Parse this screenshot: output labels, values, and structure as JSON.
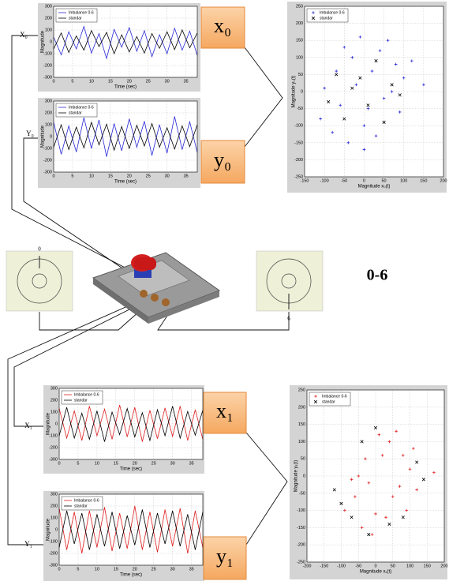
{
  "chart_data": [
    {
      "type": "line",
      "xlabel": "Time (sec)",
      "ylabel": "Magnitude",
      "grid": true,
      "xlim": [
        0,
        38
      ],
      "ylim": [
        -300,
        300
      ],
      "xticks": [
        0,
        5,
        10,
        15,
        20,
        25,
        30,
        35
      ],
      "yticks": [
        -300,
        -200,
        -100,
        0,
        100,
        200,
        300
      ],
      "x": [
        0,
        2,
        4,
        6,
        8,
        10,
        12,
        14,
        16,
        18,
        20,
        22,
        24,
        26,
        28,
        30,
        32,
        34,
        36,
        38
      ],
      "series": [
        {
          "name": "Imbalance 0-6",
          "color": "#2a2ad8",
          "values": [
            40,
            -110,
            85,
            -60,
            130,
            -95,
            70,
            -140,
            105,
            -45,
            120,
            -80,
            95,
            -125,
            60,
            -100,
            115,
            -70,
            90,
            -115
          ]
        },
        {
          "name": "standar",
          "color": "#000000",
          "values": [
            -60,
            75,
            -90,
            50,
            -70,
            95,
            -40,
            80,
            -100,
            60,
            -85,
            45,
            -95,
            70,
            -55,
            85,
            -65,
            100,
            -50,
            75
          ]
        }
      ]
    },
    {
      "type": "line",
      "xlabel": "Time (sec)",
      "ylabel": "Magnitude",
      "grid": true,
      "xlim": [
        0,
        38
      ],
      "ylim": [
        -300,
        300
      ],
      "xticks": [
        0,
        5,
        10,
        15,
        20,
        25,
        30,
        35
      ],
      "yticks": [
        -300,
        -200,
        -100,
        0,
        100,
        200,
        300
      ],
      "x": [
        0,
        2,
        4,
        6,
        8,
        10,
        12,
        14,
        16,
        18,
        20,
        22,
        24,
        26,
        28,
        30,
        32,
        34,
        36,
        38
      ],
      "series": [
        {
          "name": "Imbalance 0-6",
          "color": "#2a2ad8",
          "values": [
            120,
            -150,
            90,
            -130,
            160,
            -100,
            140,
            -170,
            110,
            -120,
            150,
            -90,
            130,
            -160,
            100,
            -140,
            170,
            -110,
            125,
            -135
          ]
        },
        {
          "name": "standar",
          "color": "#000000",
          "values": [
            -90,
            100,
            -110,
            80,
            -95,
            120,
            -70,
            105,
            -115,
            85,
            -100,
            95,
            -80,
            110,
            -90,
            75,
            -105,
            90,
            -85,
            100
          ]
        }
      ]
    },
    {
      "type": "scatter",
      "xlabel": "Magnitude x₀(t)",
      "ylabel": "Magnitude y₀(t)",
      "grid": true,
      "xlim": [
        -150,
        200
      ],
      "ylim": [
        -250,
        250
      ],
      "xticks": [
        -150,
        -100,
        -50,
        0,
        50,
        100,
        150,
        200
      ],
      "yticks": [
        -250,
        -200,
        -150,
        -100,
        -50,
        0,
        50,
        100,
        150,
        200,
        250
      ],
      "series": [
        {
          "name": "Imbalance 0-6",
          "color": "#2a2ad8",
          "marker": "+",
          "x": [
            -110,
            -80,
            -60,
            -40,
            -20,
            0,
            20,
            40,
            60,
            80,
            100,
            -100,
            -70,
            -30,
            10,
            50,
            90,
            -50,
            30,
            70,
            120,
            150,
            -10,
            0
          ],
          "y": [
            -80,
            -120,
            -40,
            -150,
            20,
            -100,
            60,
            120,
            150,
            80,
            40,
            10,
            60,
            100,
            -50,
            -20,
            -60,
            130,
            -130,
            0,
            90,
            20,
            160,
            -170
          ]
        },
        {
          "name": "standar",
          "color": "#000000",
          "marker": "x",
          "x": [
            -90,
            -50,
            -10,
            30,
            70,
            -70,
            10,
            50,
            90,
            -30
          ],
          "y": [
            -30,
            -80,
            40,
            90,
            20,
            50,
            -40,
            -90,
            -10,
            10
          ]
        }
      ]
    },
    {
      "type": "line",
      "xlabel": "Time (sec)",
      "ylabel": "Magnitude",
      "grid": true,
      "xlim": [
        0,
        38
      ],
      "ylim": [
        -300,
        300
      ],
      "xticks": [
        0,
        5,
        10,
        15,
        20,
        25,
        30,
        35
      ],
      "yticks": [
        -300,
        -200,
        -100,
        0,
        100,
        200,
        300
      ],
      "x": [
        0,
        2,
        4,
        6,
        8,
        10,
        12,
        14,
        16,
        18,
        20,
        22,
        24,
        26,
        28,
        30,
        32,
        34,
        36,
        38
      ],
      "series": [
        {
          "name": "Imbalance 0-6",
          "color": "#e02020",
          "values": [
            130,
            -120,
            110,
            -140,
            150,
            -100,
            125,
            -130,
            160,
            -110,
            140,
            -150,
            115,
            -125,
            135,
            -105,
            150,
            -140,
            120,
            -130
          ]
        },
        {
          "name": "standar",
          "color": "#000000",
          "values": [
            -100,
            140,
            -120,
            90,
            -130,
            110,
            -150,
            100,
            -90,
            130,
            -110,
            95,
            -140,
            120,
            -100,
            150,
            -120,
            105,
            -95,
            115
          ]
        }
      ]
    },
    {
      "type": "line",
      "xlabel": "Time (sec)",
      "ylabel": "Magnitude",
      "grid": true,
      "xlim": [
        0,
        38
      ],
      "ylim": [
        -300,
        300
      ],
      "xticks": [
        0,
        5,
        10,
        15,
        20,
        25,
        30,
        35
      ],
      "yticks": [
        -300,
        -200,
        -100,
        0,
        100,
        200,
        300
      ],
      "x": [
        0,
        2,
        4,
        6,
        8,
        10,
        12,
        14,
        16,
        18,
        20,
        22,
        24,
        26,
        28,
        30,
        32,
        34,
        36,
        38
      ],
      "series": [
        {
          "name": "Imbalance 0-6",
          "color": "#e02020",
          "values": [
            180,
            -170,
            150,
            -200,
            160,
            -150,
            190,
            -180,
            140,
            -160,
            200,
            -170,
            150,
            -190,
            170,
            -140,
            180,
            -200,
            160,
            -150
          ]
        },
        {
          "name": "standar",
          "color": "#000000",
          "values": [
            -150,
            160,
            -120,
            140,
            -170,
            130,
            -140,
            150,
            -160,
            120,
            -130,
            170,
            -150,
            140,
            -120,
            160,
            -140,
            130,
            -170,
            150
          ]
        }
      ]
    },
    {
      "type": "scatter",
      "xlabel": "Magnitude x₁(t)",
      "ylabel": "Magnitude y₁(t)",
      "grid": true,
      "xlim": [
        -200,
        200
      ],
      "ylim": [
        -250,
        250
      ],
      "xticks": [
        -200,
        -150,
        -100,
        -50,
        0,
        50,
        100,
        150,
        200
      ],
      "yticks": [
        -250,
        -200,
        -150,
        -100,
        -50,
        0,
        50,
        100,
        150,
        200,
        250
      ],
      "series": [
        {
          "name": "Imbalance 0-6",
          "color": "#e02020",
          "marker": "+",
          "x": [
            -90,
            -60,
            -40,
            -20,
            0,
            20,
            40,
            60,
            80,
            100,
            120,
            -70,
            -30,
            10,
            50,
            90,
            -50,
            30,
            70,
            -10,
            110,
            170
          ],
          "y": [
            -100,
            -60,
            -150,
            -20,
            -110,
            60,
            100,
            130,
            60,
            20,
            -40,
            -10,
            50,
            120,
            -60,
            -100,
            0,
            -120,
            -30,
            -170,
            80,
            10
          ]
        },
        {
          "name": "standar",
          "color": "#000000",
          "marker": "x",
          "x": [
            -120,
            -100,
            -70,
            -40,
            0,
            40,
            80,
            120,
            140,
            -20
          ],
          "y": [
            -40,
            -80,
            -120,
            100,
            140,
            -140,
            -120,
            40,
            -10,
            -170
          ]
        }
      ]
    }
  ],
  "diagram": {
    "boxes": [
      "x₀",
      "y₀",
      "x₁",
      "y₁"
    ],
    "side_labels": [
      "X₀",
      "Y₀",
      "X₁",
      "Y₁"
    ],
    "disk_labels": [
      "0",
      "6"
    ],
    "range_label": "0-6"
  }
}
